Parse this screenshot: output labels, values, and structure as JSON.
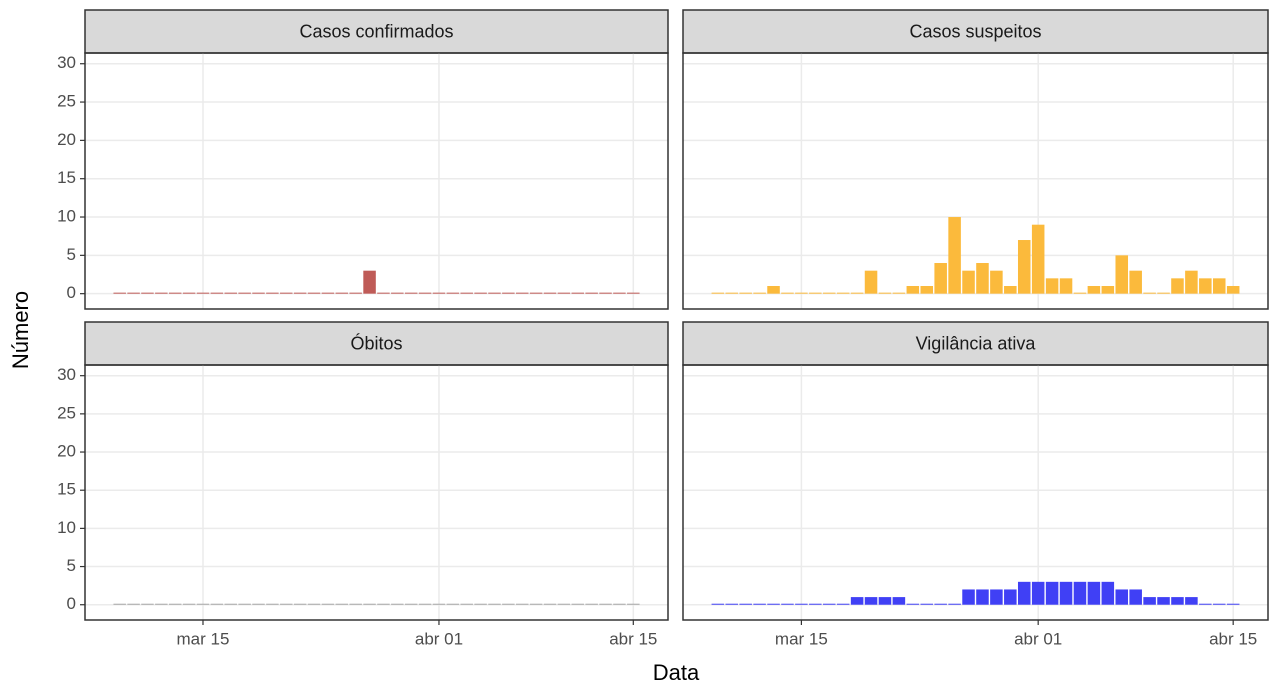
{
  "x_label": "Data",
  "y_label": "Número",
  "chart_data": [
    {
      "type": "bar",
      "title": "Casos confirmados",
      "color": "#bf5b57",
      "x": [
        "mar 09",
        "mar 10",
        "mar 11",
        "mar 12",
        "mar 13",
        "mar 14",
        "mar 15",
        "mar 16",
        "mar 17",
        "mar 18",
        "mar 19",
        "mar 20",
        "mar 21",
        "mar 22",
        "mar 23",
        "mar 24",
        "mar 25",
        "mar 26",
        "mar 27",
        "mar 28",
        "mar 29",
        "mar 30",
        "mar 31",
        "abr 01",
        "abr 02",
        "abr 03",
        "abr 04",
        "abr 05",
        "abr 06",
        "abr 07",
        "abr 08",
        "abr 09",
        "abr 10",
        "abr 11",
        "abr 12",
        "abr 13",
        "abr 14",
        "abr 15"
      ],
      "values": [
        0,
        0,
        0,
        0,
        0,
        0,
        0,
        0,
        0,
        0,
        0,
        0,
        0,
        0,
        0,
        0,
        0,
        0,
        3,
        0,
        0,
        0,
        0,
        0,
        0,
        0,
        0,
        0,
        0,
        0,
        0,
        0,
        0,
        0,
        0,
        0,
        0,
        0
      ],
      "xticks": [
        "mar 15",
        "abr 01",
        "abr 15"
      ],
      "ylim": [
        -2,
        31.4
      ],
      "yticks": [
        0,
        5,
        10,
        15,
        20,
        25,
        30
      ],
      "grid": true
    },
    {
      "type": "bar",
      "title": "Casos suspeitos",
      "color": "#fbba3c",
      "x": [
        "mar 09",
        "mar 10",
        "mar 11",
        "mar 12",
        "mar 13",
        "mar 14",
        "mar 15",
        "mar 16",
        "mar 17",
        "mar 18",
        "mar 19",
        "mar 20",
        "mar 21",
        "mar 22",
        "mar 23",
        "mar 24",
        "mar 25",
        "mar 26",
        "mar 27",
        "mar 28",
        "mar 29",
        "mar 30",
        "mar 31",
        "abr 01",
        "abr 02",
        "abr 03",
        "abr 04",
        "abr 05",
        "abr 06",
        "abr 07",
        "abr 08",
        "abr 09",
        "abr 10",
        "abr 11",
        "abr 12",
        "abr 13",
        "abr 14",
        "abr 15"
      ],
      "values": [
        0,
        0,
        0,
        0,
        1,
        0,
        0,
        0,
        0,
        0,
        0,
        3,
        0,
        0,
        1,
        1,
        4,
        10,
        3,
        4,
        3,
        1,
        7,
        9,
        2,
        2,
        0,
        1,
        1,
        5,
        3,
        0,
        0,
        2,
        3,
        2,
        2,
        1
      ],
      "xticks": [
        "mar 15",
        "abr 01",
        "abr 15"
      ],
      "ylim": [
        -2,
        31.4
      ],
      "yticks": [
        0,
        5,
        10,
        15,
        20,
        25,
        30
      ],
      "grid": true
    },
    {
      "type": "bar",
      "title": "Óbitos",
      "color": "#a6a6a6",
      "x": [
        "mar 09",
        "mar 10",
        "mar 11",
        "mar 12",
        "mar 13",
        "mar 14",
        "mar 15",
        "mar 16",
        "mar 17",
        "mar 18",
        "mar 19",
        "mar 20",
        "mar 21",
        "mar 22",
        "mar 23",
        "mar 24",
        "mar 25",
        "mar 26",
        "mar 27",
        "mar 28",
        "mar 29",
        "mar 30",
        "mar 31",
        "abr 01",
        "abr 02",
        "abr 03",
        "abr 04",
        "abr 05",
        "abr 06",
        "abr 07",
        "abr 08",
        "abr 09",
        "abr 10",
        "abr 11",
        "abr 12",
        "abr 13",
        "abr 14",
        "abr 15"
      ],
      "values": [
        0,
        0,
        0,
        0,
        0,
        0,
        0,
        0,
        0,
        0,
        0,
        0,
        0,
        0,
        0,
        0,
        0,
        0,
        0,
        0,
        0,
        0,
        0,
        0,
        0,
        0,
        0,
        0,
        0,
        0,
        0,
        0,
        0,
        0,
        0,
        0,
        0,
        0
      ],
      "xticks": [
        "mar 15",
        "abr 01",
        "abr 15"
      ],
      "ylim": [
        -2,
        31.4
      ],
      "yticks": [
        0,
        5,
        10,
        15,
        20,
        25,
        30
      ],
      "grid": true
    },
    {
      "type": "bar",
      "title": "Vigilância ativa",
      "color": "#4040f5",
      "x": [
        "mar 09",
        "mar 10",
        "mar 11",
        "mar 12",
        "mar 13",
        "mar 14",
        "mar 15",
        "mar 16",
        "mar 17",
        "mar 18",
        "mar 19",
        "mar 20",
        "mar 21",
        "mar 22",
        "mar 23",
        "mar 24",
        "mar 25",
        "mar 26",
        "mar 27",
        "mar 28",
        "mar 29",
        "mar 30",
        "mar 31",
        "abr 01",
        "abr 02",
        "abr 03",
        "abr 04",
        "abr 05",
        "abr 06",
        "abr 07",
        "abr 08",
        "abr 09",
        "abr 10",
        "abr 11",
        "abr 12",
        "abr 13",
        "abr 14",
        "abr 15"
      ],
      "values": [
        0,
        0,
        0,
        0,
        0,
        0,
        0,
        0,
        0,
        0,
        1,
        1,
        1,
        1,
        0,
        0,
        0,
        0,
        2,
        2,
        2,
        2,
        3,
        3,
        3,
        3,
        3,
        3,
        3,
        2,
        2,
        1,
        1,
        1,
        1,
        0,
        0,
        0
      ],
      "xticks": [
        "mar 15",
        "abr 01",
        "abr 15"
      ],
      "ylim": [
        -2,
        31.4
      ],
      "yticks": [
        0,
        5,
        10,
        15,
        20,
        25,
        30
      ],
      "grid": true
    }
  ]
}
